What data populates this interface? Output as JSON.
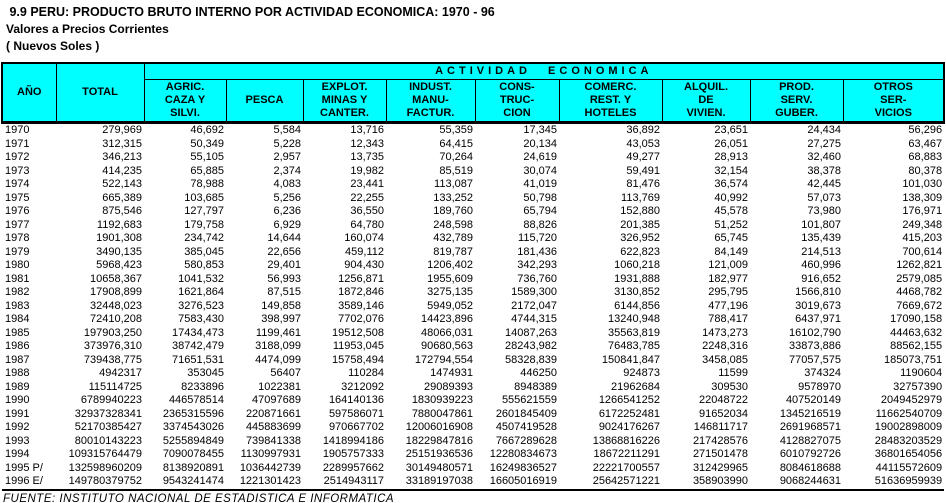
{
  "header": {
    "title": " 9.9 PERU: PRODUCTO BRUTO INTERNO POR ACTIVIDAD ECONOMICA: 1970 - 96",
    "subtitle": "Valores a Precios Corrientes",
    "unit": "( Nuevos Soles )"
  },
  "colors": {
    "header_bg": "#00ffff",
    "border": "#000000",
    "text": "#000000"
  },
  "table": {
    "year_header": "AÑO",
    "total_header": "TOTAL",
    "group_header": "ACTIVIDAD ECONOMICA",
    "activity_columns": [
      {
        "id": "agric-caza-silvi",
        "lines": [
          "AGRIC.",
          "CAZA Y",
          "SILVI."
        ]
      },
      {
        "id": "pesca",
        "lines": [
          "PESCA"
        ]
      },
      {
        "id": "explot-minas-canter",
        "lines": [
          "EXPLOT.",
          "MINAS Y",
          "CANTER."
        ]
      },
      {
        "id": "indust-manufactur",
        "lines": [
          "INDUST.",
          "MANU-",
          "FACTUR."
        ]
      },
      {
        "id": "construccion",
        "lines": [
          "CONS-",
          "TRUC-",
          "CION"
        ]
      },
      {
        "id": "comerc-rest-hoteles",
        "lines": [
          "COMERC.",
          "REST. Y",
          "HOTELES"
        ]
      },
      {
        "id": "alquil-de-vivien",
        "lines": [
          "ALQUIL.",
          "DE",
          "VIVIEN."
        ]
      },
      {
        "id": "prod-serv-guber",
        "lines": [
          "PROD.",
          "SERV.",
          "GUBER."
        ]
      },
      {
        "id": "otros-servicios",
        "lines": [
          "OTROS",
          "SER-",
          "VICIOS"
        ]
      }
    ],
    "rows": [
      {
        "year": "1970",
        "values": [
          "279,969",
          "46,692",
          "5,584",
          "13,716",
          "55,359",
          "17,345",
          "36,892",
          "23,651",
          "24,434",
          "56,296"
        ]
      },
      {
        "year": "1971",
        "values": [
          "312,315",
          "50,349",
          "5,228",
          "12,343",
          "64,415",
          "20,134",
          "43,053",
          "26,051",
          "27,275",
          "63,467"
        ]
      },
      {
        "year": "1972",
        "values": [
          "346,213",
          "55,105",
          "2,957",
          "13,735",
          "70,264",
          "24,619",
          "49,277",
          "28,913",
          "32,460",
          "68,883"
        ]
      },
      {
        "year": "1973",
        "values": [
          "414,235",
          "65,885",
          "2,374",
          "19,982",
          "85,519",
          "30,074",
          "59,491",
          "32,154",
          "38,378",
          "80,378"
        ]
      },
      {
        "year": "1974",
        "values": [
          "522,143",
          "78,988",
          "4,083",
          "23,441",
          "113,087",
          "41,019",
          "81,476",
          "36,574",
          "42,445",
          "101,030"
        ]
      },
      {
        "year": "1975",
        "values": [
          "665,389",
          "103,685",
          "5,256",
          "22,255",
          "133,252",
          "50,798",
          "113,769",
          "40,992",
          "57,073",
          "138,309"
        ]
      },
      {
        "year": "1976",
        "values": [
          "875,546",
          "127,797",
          "6,236",
          "36,550",
          "189,760",
          "65,794",
          "152,880",
          "45,578",
          "73,980",
          "176,971"
        ]
      },
      {
        "year": "1977",
        "values": [
          "1192,683",
          "179,758",
          "6,929",
          "64,780",
          "248,598",
          "88,826",
          "201,385",
          "51,252",
          "101,807",
          "249,348"
        ]
      },
      {
        "year": "1978",
        "values": [
          "1901,308",
          "234,742",
          "14,644",
          "160,074",
          "432,789",
          "115,720",
          "326,952",
          "65,745",
          "135,439",
          "415,203"
        ]
      },
      {
        "year": "1979",
        "values": [
          "3490,135",
          "385,045",
          "22,656",
          "459,112",
          "819,787",
          "181,436",
          "622,823",
          "84,149",
          "214,513",
          "700,614"
        ]
      },
      {
        "year": "1980",
        "values": [
          "5968,423",
          "580,853",
          "29,401",
          "904,430",
          "1206,402",
          "342,293",
          "1060,218",
          "121,009",
          "460,996",
          "1262,821"
        ]
      },
      {
        "year": "1981",
        "values": [
          "10658,367",
          "1041,532",
          "56,993",
          "1256,871",
          "1955,609",
          "736,760",
          "1931,888",
          "182,977",
          "916,652",
          "2579,085"
        ]
      },
      {
        "year": "1982",
        "values": [
          "17908,899",
          "1621,864",
          "87,515",
          "1872,846",
          "3275,135",
          "1589,300",
          "3130,852",
          "295,795",
          "1566,810",
          "4468,782"
        ]
      },
      {
        "year": "1983",
        "values": [
          "32448,023",
          "3276,523",
          "149,858",
          "3589,146",
          "5949,052",
          "2172,047",
          "6144,856",
          "477,196",
          "3019,673",
          "7669,672"
        ]
      },
      {
        "year": "1984",
        "values": [
          "72410,208",
          "7583,430",
          "398,997",
          "7702,076",
          "14423,896",
          "4744,315",
          "13240,948",
          "788,417",
          "6437,971",
          "17090,158"
        ]
      },
      {
        "year": "1985",
        "values": [
          "197903,250",
          "17434,473",
          "1199,461",
          "19512,508",
          "48066,031",
          "14087,263",
          "35563,819",
          "1473,273",
          "16102,790",
          "44463,632"
        ]
      },
      {
        "year": "1986",
        "values": [
          "373976,310",
          "38742,479",
          "3188,099",
          "11953,045",
          "90680,563",
          "28243,982",
          "76483,785",
          "2248,316",
          "33873,886",
          "88562,155"
        ]
      },
      {
        "year": "1987",
        "values": [
          "739438,775",
          "71651,531",
          "4474,099",
          "15758,494",
          "172794,554",
          "58328,839",
          "150841,847",
          "3458,085",
          "77057,575",
          "185073,751"
        ]
      },
      {
        "year": "1988",
        "values": [
          "4942317",
          "353045",
          "56407",
          "110284",
          "1474931",
          "446250",
          "924873",
          "11599",
          "374324",
          "1190604"
        ]
      },
      {
        "year": "1989",
        "values": [
          "115114725",
          "8233896",
          "1022381",
          "3212092",
          "29089393",
          "8948389",
          "21962684",
          "309530",
          "9578970",
          "32757390"
        ]
      },
      {
        "year": "1990",
        "values": [
          "6789940223",
          "446578514",
          "47097689",
          "164140136",
          "1830939223",
          "555621559",
          "1266541252",
          "22048722",
          "407520149",
          "2049452979"
        ]
      },
      {
        "year": "1991",
        "values": [
          "32937328341",
          "2365315596",
          "220871661",
          "597586071",
          "7880047861",
          "2601845409",
          "6172252481",
          "91652034",
          "1345216519",
          "11662540709"
        ]
      },
      {
        "year": "1992",
        "values": [
          "52170385427",
          "3374543026",
          "445883699",
          "970667702",
          "12006016908",
          "4507419528",
          "9024176267",
          "146811717",
          "2691968571",
          "19002898009"
        ]
      },
      {
        "year": "1993",
        "values": [
          "80010143223",
          "5255894849",
          "739841338",
          "1418994186",
          "18229847816",
          "7667289628",
          "13868816226",
          "217428576",
          "4128827075",
          "28483203529"
        ]
      },
      {
        "year": "1994",
        "values": [
          "109315764479",
          "7090078455",
          "1130997931",
          "1905757333",
          "25151936536",
          "12280834673",
          "18672211291",
          "271501478",
          "6010792726",
          "36801654056"
        ]
      },
      {
        "year": "1995 P/",
        "values": [
          "132598960209",
          "8138920891",
          "1036442739",
          "2289957662",
          "30149480571",
          "16249836527",
          "22221700557",
          "312429965",
          "8084618688",
          "44115572609"
        ]
      },
      {
        "year": "1996 E/",
        "values": [
          "149780379752",
          "9543241474",
          "1221301423",
          "2514943117",
          "33189197038",
          "16605016919",
          "25642571221",
          "358903990",
          "9068244631",
          "51636959939"
        ]
      }
    ]
  },
  "footer": {
    "source": "FUENTE: INSTITUTO NACIONAL DE ESTADISTICA E INFORMATICA"
  }
}
